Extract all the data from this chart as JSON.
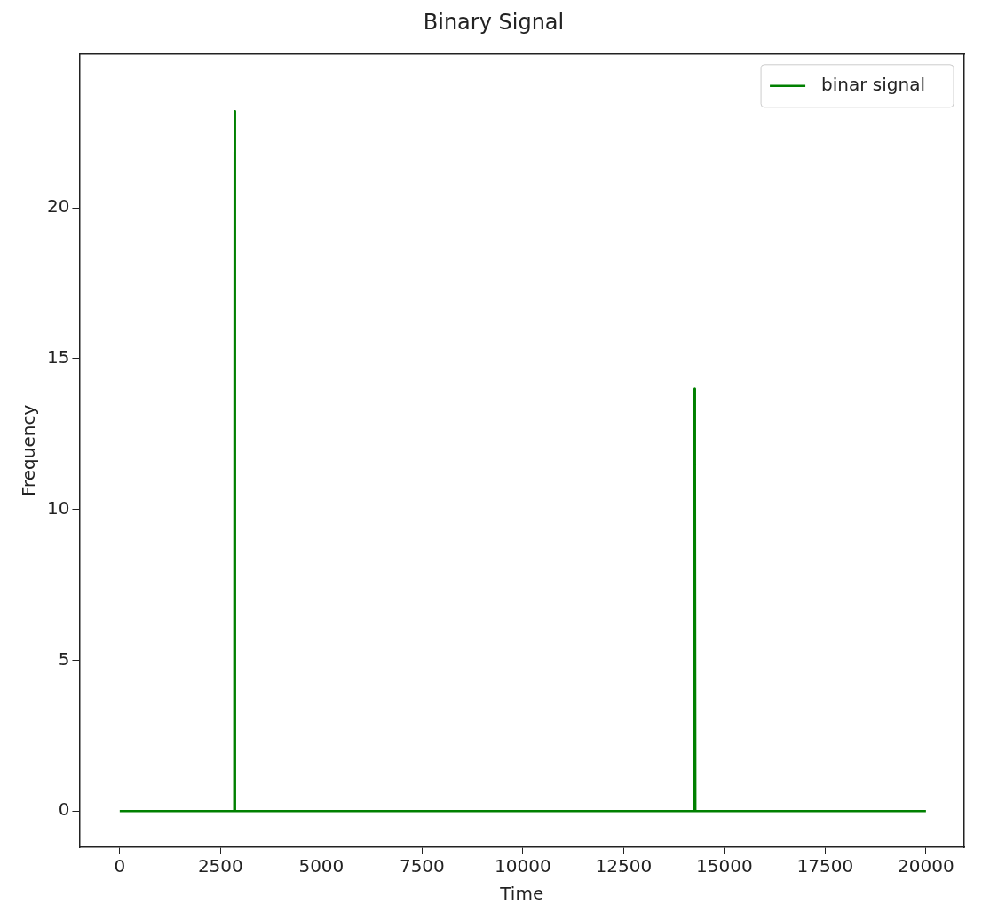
{
  "chart_data": {
    "type": "line",
    "title": "Binary Signal",
    "xlabel": "Time",
    "ylabel": "Frequency",
    "x": [
      0,
      2840,
      2850,
      2860,
      14250,
      14260,
      14270,
      14280,
      20000
    ],
    "series": [
      {
        "name": "binar signal",
        "color": "#008000",
        "values": [
          0,
          0,
          23.2,
          0,
          0,
          14,
          11.5,
          0,
          0
        ]
      }
    ],
    "xlim": [
      -1000,
      20950
    ],
    "xticks": [
      0,
      2500,
      5000,
      7500,
      10000,
      12500,
      15000,
      17500,
      20000
    ],
    "ylim": [
      -1.2,
      25.1
    ],
    "yticks": [
      0,
      5,
      10,
      15,
      20
    ],
    "grid": false,
    "legend": "top right",
    "marker": "none",
    "line_style": "solid"
  }
}
